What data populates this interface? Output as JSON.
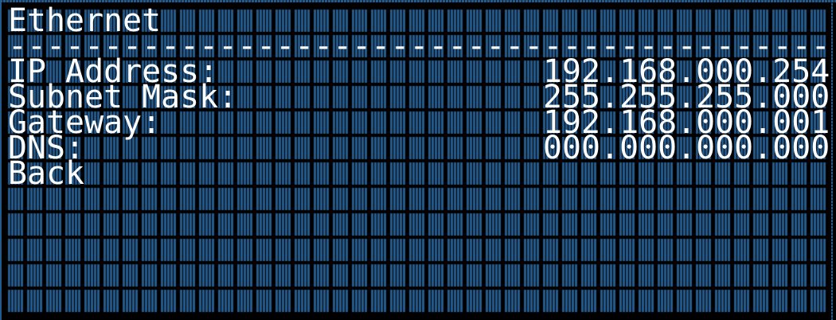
{
  "screen": {
    "title": "Ethernet",
    "separator": "-------------------------------------------",
    "fields": [
      {
        "label": "IP Address:",
        "value": "192.168.000.254"
      },
      {
        "label": "Subnet Mask:",
        "value": "255.255.255.000"
      },
      {
        "label": "Gateway:",
        "value": "192.168.000.001"
      },
      {
        "label": "DNS:",
        "value": "000.000.000.000"
      }
    ],
    "back_label": "Back"
  },
  "colors": {
    "background": "#000000",
    "unlit_pixel": "#245a8c",
    "lit_pixel": "#ffffff"
  }
}
